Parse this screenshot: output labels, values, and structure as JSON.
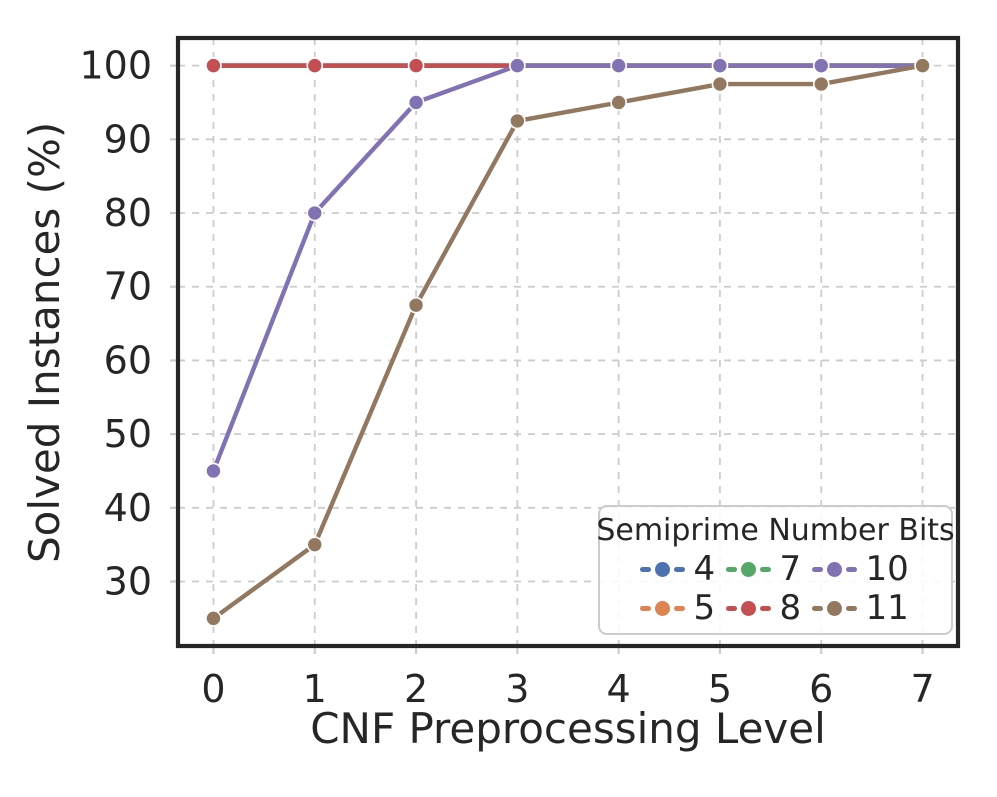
{
  "figure": {
    "background": "#ffffff",
    "text_color": "#262626",
    "grid_color": "#cccccc",
    "spine_color": "#262626",
    "marker_edge_color": "#ffffff"
  },
  "chart_data": {
    "type": "line",
    "title": "",
    "xlabel": "CNF Preprocessing Level",
    "ylabel": "Solved Instances (%)",
    "x": [
      0,
      1,
      2,
      3,
      4,
      5,
      6,
      7
    ],
    "xticks": [
      0,
      1,
      2,
      3,
      4,
      5,
      6,
      7
    ],
    "yticks": [
      30,
      40,
      50,
      60,
      70,
      80,
      90,
      100
    ],
    "xlim": [
      -0.35,
      7.35
    ],
    "ylim": [
      21.25,
      103.75
    ],
    "grid": "dashed",
    "legend": {
      "title": "Semiprime Number Bits",
      "position": "lower right",
      "columns": 3
    },
    "series": [
      {
        "name": "4",
        "color": "#4C72B0",
        "values": [
          100,
          100,
          100,
          100,
          100,
          100,
          100,
          100
        ]
      },
      {
        "name": "5",
        "color": "#DD8452",
        "values": [
          100,
          100,
          100,
          100,
          100,
          100,
          100,
          100
        ]
      },
      {
        "name": "7",
        "color": "#55A868",
        "values": [
          100,
          100,
          100,
          100,
          100,
          100,
          100,
          100
        ]
      },
      {
        "name": "8",
        "color": "#C44E52",
        "values": [
          100,
          100,
          100,
          100,
          100,
          100,
          100,
          100
        ]
      },
      {
        "name": "10",
        "color": "#8172B3",
        "values": [
          45,
          80,
          95,
          100,
          100,
          100,
          100,
          100
        ]
      },
      {
        "name": "11",
        "color": "#937860",
        "values": [
          25,
          35,
          67.5,
          92.5,
          95,
          97.5,
          97.5,
          100
        ]
      }
    ]
  }
}
